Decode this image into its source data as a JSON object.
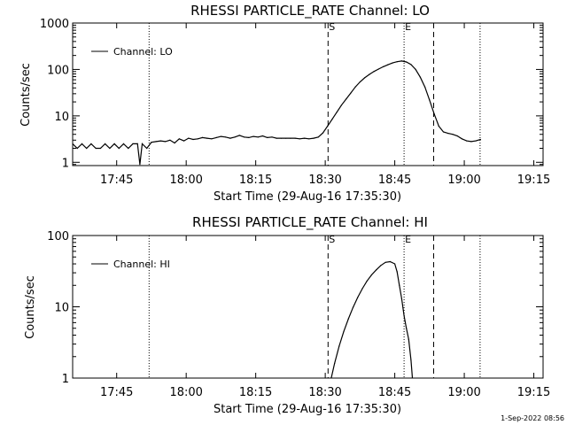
{
  "timestamp": "1-Sep-2022 08:56",
  "chart_data": [
    {
      "type": "line",
      "title": "RHESSI PARTICLE_RATE Channel: LO",
      "xlabel": "Start Time (29-Aug-16 17:35:30)",
      "ylabel": "Counts/sec",
      "x_unit": "minutes since 17:35:30",
      "xlim": [
        0,
        101.5
      ],
      "ylim": [
        0.85,
        1000
      ],
      "y_scale": "log",
      "x_ticks": [
        {
          "x": 9.5,
          "label": "17:45"
        },
        {
          "x": 24.5,
          "label": "18:00"
        },
        {
          "x": 39.5,
          "label": "18:15"
        },
        {
          "x": 54.5,
          "label": "18:30"
        },
        {
          "x": 69.5,
          "label": "18:45"
        },
        {
          "x": 84.5,
          "label": "19:00"
        },
        {
          "x": 99.5,
          "label": "19:15"
        }
      ],
      "y_ticks": [
        {
          "y": 1,
          "label": "1"
        },
        {
          "y": 10,
          "label": "10"
        },
        {
          "y": 100,
          "label": "100"
        },
        {
          "y": 1000,
          "label": "1000"
        }
      ],
      "markers": [
        {
          "x": 16.5,
          "style": "dotted",
          "label": ""
        },
        {
          "x": 55.1,
          "style": "dashed",
          "label": "S"
        },
        {
          "x": 71.5,
          "style": "dotted",
          "label": "E"
        },
        {
          "x": 77.9,
          "style": "dashed",
          "label": ""
        },
        {
          "x": 87.9,
          "style": "dotted",
          "label": ""
        }
      ],
      "legend": {
        "label": "Channel: LO",
        "position": "top-left"
      },
      "grid": false,
      "series": [
        {
          "name": "Channel: LO",
          "x": [
            0,
            1,
            2,
            3,
            4,
            5,
            6,
            7,
            8,
            9,
            10,
            11,
            12,
            13,
            14,
            14.5,
            15,
            16,
            17,
            18,
            19,
            20,
            21,
            22,
            23,
            24,
            25,
            26,
            27,
            28,
            29,
            30,
            31,
            32,
            33,
            34,
            35,
            36,
            37,
            38,
            39,
            40,
            41,
            42,
            43,
            44,
            45,
            46,
            47,
            48,
            49,
            50,
            51,
            52,
            53,
            54,
            55,
            56,
            57,
            58,
            59,
            60,
            61,
            62,
            63,
            64,
            65,
            66,
            67,
            68,
            69,
            70,
            71,
            72,
            73,
            74,
            75,
            76,
            77,
            78,
            79,
            80,
            81,
            82,
            83,
            84,
            85,
            86,
            87,
            88
          ],
          "y": [
            2.5,
            2,
            2.5,
            2,
            2.5,
            2,
            2,
            2.5,
            2,
            2.5,
            2,
            2.5,
            2,
            2.5,
            2.5,
            0.9,
            2.5,
            2,
            2.7,
            2.8,
            2.9,
            2.8,
            3,
            2.6,
            3.2,
            2.9,
            3.3,
            3.1,
            3.2,
            3.4,
            3.3,
            3.2,
            3.4,
            3.6,
            3.5,
            3.3,
            3.5,
            3.8,
            3.5,
            3.4,
            3.6,
            3.5,
            3.7,
            3.4,
            3.5,
            3.3,
            3.3,
            3.3,
            3.3,
            3.3,
            3.2,
            3.3,
            3.2,
            3.3,
            3.5,
            4.3,
            6,
            8.5,
            12,
            17,
            23,
            31,
            42,
            54,
            66,
            78,
            90,
            102,
            114,
            126,
            138,
            147,
            152,
            145,
            128,
            100,
            68,
            42,
            22,
            11,
            6,
            4.5,
            4.2,
            4,
            3.7,
            3.2,
            2.9,
            2.8,
            2.9,
            3.1
          ]
        }
      ]
    },
    {
      "type": "line",
      "title": "RHESSI PARTICLE_RATE Channel: HI",
      "xlabel": "Start Time (29-Aug-16 17:35:30)",
      "ylabel": "Counts/sec",
      "x_unit": "minutes since 17:35:30",
      "xlim": [
        0,
        101.5
      ],
      "ylim": [
        1,
        100
      ],
      "y_scale": "log",
      "x_ticks": [
        {
          "x": 9.5,
          "label": "17:45"
        },
        {
          "x": 24.5,
          "label": "18:00"
        },
        {
          "x": 39.5,
          "label": "18:15"
        },
        {
          "x": 54.5,
          "label": "18:30"
        },
        {
          "x": 69.5,
          "label": "18:45"
        },
        {
          "x": 84.5,
          "label": "19:00"
        },
        {
          "x": 99.5,
          "label": "19:15"
        }
      ],
      "y_ticks": [
        {
          "y": 1,
          "label": "1"
        },
        {
          "y": 10,
          "label": "10"
        },
        {
          "y": 100,
          "label": "100"
        }
      ],
      "markers": [
        {
          "x": 16.5,
          "style": "dotted",
          "label": ""
        },
        {
          "x": 55.1,
          "style": "dashed",
          "label": "S"
        },
        {
          "x": 71.5,
          "style": "dotted",
          "label": "E"
        },
        {
          "x": 77.9,
          "style": "dashed",
          "label": ""
        },
        {
          "x": 87.9,
          "style": "dotted",
          "label": ""
        }
      ],
      "legend": {
        "label": "Channel: HI",
        "position": "top-left"
      },
      "grid": false,
      "series": [
        {
          "name": "Channel: HI",
          "x": [
            55.8,
            56.5,
            57.5,
            58.5,
            59.5,
            60.5,
            61.5,
            62.5,
            63.5,
            64.5,
            65.5,
            66.5,
            67.5,
            68.5,
            69.5,
            70,
            70.5,
            71,
            71.5,
            72,
            72.5,
            73,
            73.3
          ],
          "y": [
            1,
            1.6,
            2.8,
            4.5,
            6.8,
            9.8,
            13.5,
            18,
            23,
            28,
            33,
            38,
            42,
            43,
            40,
            31,
            20,
            13,
            7.5,
            5,
            3.5,
            1.8,
            1
          ]
        }
      ]
    }
  ]
}
